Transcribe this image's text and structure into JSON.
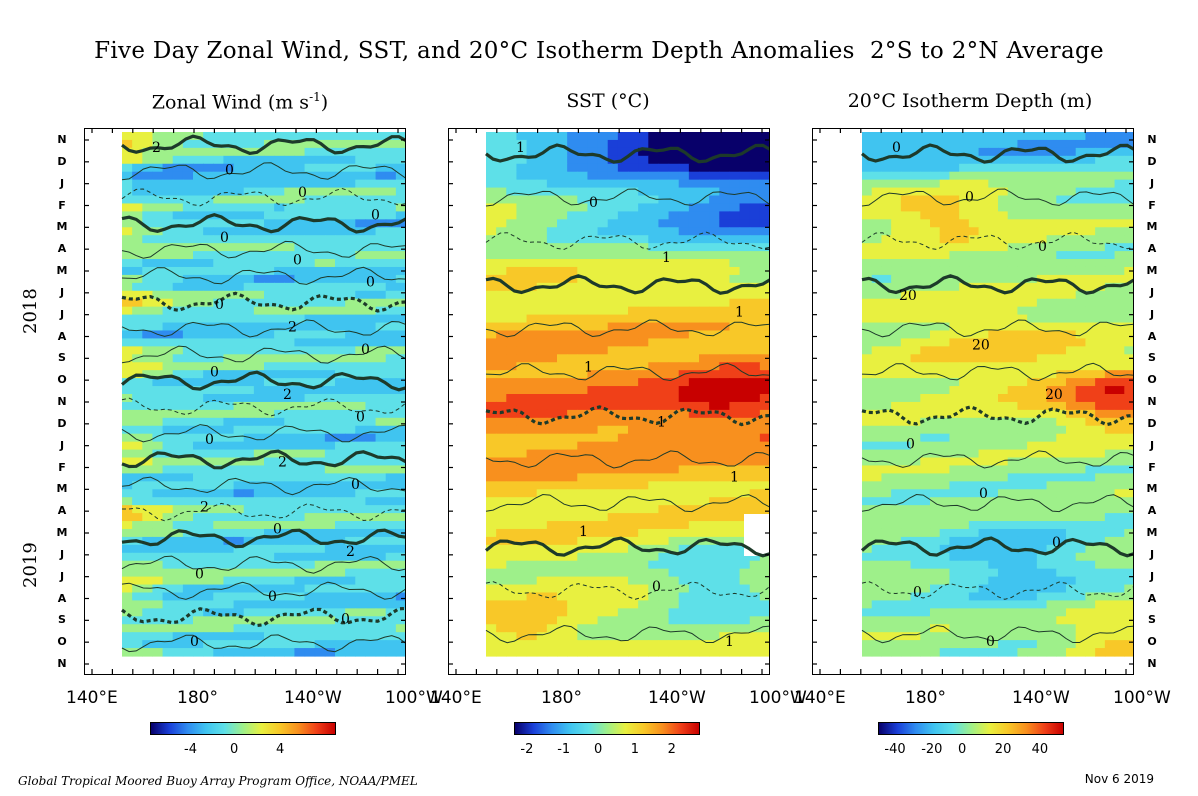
{
  "title": "Five Day Zonal Wind, SST, and 20°C Isotherm Depth Anomalies  2°S to 2°N Average",
  "footer": "Global Tropical Moored Buoy Array Program Office, NOAA/PMEL",
  "date": "Nov  6 2019",
  "colors": {
    "scale": [
      "#08006a",
      "#1a3fd8",
      "#2f8cf0",
      "#40c4f0",
      "#5ee0e8",
      "#9ef08a",
      "#e8f040",
      "#f8c828",
      "#f8901e",
      "#f04018",
      "#c80000"
    ],
    "contour": "#1d3a2a"
  },
  "chart_data": {
    "type": "heatmap",
    "time_axis": {
      "months": [
        "N",
        "D",
        "J",
        "F",
        "M",
        "A",
        "M",
        "J",
        "J",
        "A",
        "S",
        "O",
        "N",
        "D",
        "J",
        "F",
        "M",
        "A",
        "M",
        "J",
        "J",
        "A",
        "S",
        "O",
        "N"
      ],
      "years": [
        "2018",
        "2019"
      ],
      "range": [
        "Nov 2017",
        "Nov 2019"
      ]
    },
    "lon_ticks": [
      "140°E",
      "180°",
      "140°W",
      "100°W"
    ],
    "panels": [
      {
        "name": "zonal-wind",
        "title": "Zonal Wind (m s",
        "title_sup": "-1",
        "title_end": ")",
        "units": "m s-1",
        "colorbar_ticks": [
          "-4",
          "0",
          "4"
        ],
        "contour_labels": [
          "2",
          "0",
          "0",
          "0",
          "0",
          "0",
          "0",
          "0",
          "2",
          "0",
          "0",
          "2",
          "0",
          "0",
          "2",
          "0",
          "2",
          "0",
          "2",
          "0",
          "0",
          "0",
          "0"
        ]
      },
      {
        "name": "sst",
        "title": "SST (°C)",
        "units": "°C",
        "colorbar_ticks": [
          "-2",
          "-1",
          "0",
          "1",
          "2"
        ],
        "contour_labels": [
          "1",
          "0",
          "1",
          "1",
          "1",
          "1",
          "1",
          "1",
          "0",
          "1"
        ]
      },
      {
        "name": "isotherm-depth",
        "title": "20°C Isotherm Depth (m)",
        "units": "m",
        "colorbar_ticks": [
          "-40",
          "-20",
          "0",
          "20",
          "40"
        ],
        "contour_labels": [
          "0",
          "0",
          "0",
          "20",
          "20",
          "20",
          "0",
          "0",
          "0",
          "0",
          "0"
        ]
      }
    ]
  }
}
